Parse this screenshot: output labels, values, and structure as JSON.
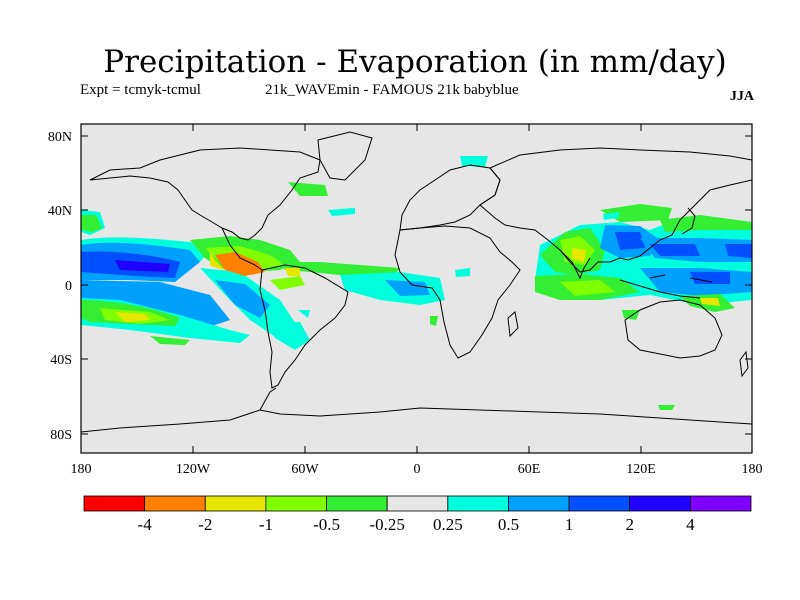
{
  "header": {
    "title": "Precipitation - Evaporation (in mm/day)",
    "expt": "Expt = tcmyk-tcmul",
    "run": "21k_WAVEmin - FAMOUS 21k babyblue",
    "season": "JJA"
  },
  "axes": {
    "lat_ticks": [
      "80N",
      "40N",
      "0",
      "40S",
      "80S"
    ],
    "lon_ticks": [
      "180",
      "120W",
      "60W",
      "0",
      "60E",
      "120E",
      "180"
    ]
  },
  "colorbar": {
    "labels": [
      "-4",
      "-2",
      "-1",
      "-0.5",
      "-0.25",
      "0.25",
      "0.5",
      "1",
      "2",
      "4"
    ],
    "colors": [
      "#ff0000",
      "#ff8000",
      "#e6e600",
      "#80ff00",
      "#33ee33",
      "#e6e6e6",
      "#00ffdd",
      "#00a0ff",
      "#0050ff",
      "#2000ff",
      "#8000ff"
    ]
  },
  "map": {
    "ocean_color": "#e6e6e6"
  }
}
